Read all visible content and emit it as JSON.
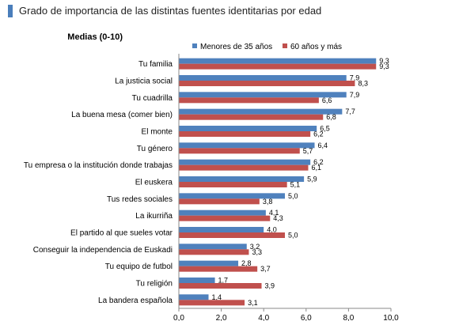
{
  "header": {
    "title": "Grado de importancia de las distintas fuentes identitarias por edad",
    "accent_color": "#4a7ebb"
  },
  "chart_data": {
    "type": "bar",
    "orientation": "horizontal",
    "subtitle": "Medias (0-10)",
    "categories": [
      "Tu familia",
      "La justicia social",
      "Tu cuadrilla",
      "La buena mesa (comer bien)",
      "El monte",
      "Tu género",
      "Tu empresa o la institución donde trabajas",
      "El euskera",
      "Tus redes sociales",
      "La ikurriña",
      "El partido al que sueles votar",
      "Conseguir la independencia de Euskadi",
      "Tu equipo de futbol",
      "Tu religión",
      "La bandera española"
    ],
    "series": [
      {
        "name": "Menores de 35 años",
        "color": "#4f81bd",
        "values": [
          9.3,
          7.9,
          7.9,
          7.7,
          6.5,
          6.4,
          6.2,
          5.9,
          5.0,
          4.1,
          4.0,
          3.2,
          2.8,
          1.7,
          1.4
        ],
        "labels": [
          "9,3",
          "7,9",
          "7,9",
          "7,7",
          "6,5",
          "6,4",
          "6,2",
          "5,9",
          "5,0",
          "4,1",
          "4,0",
          "3,2",
          "2,8",
          "1,7",
          "1,4"
        ]
      },
      {
        "name": "60 años y más",
        "color": "#c0504d",
        "values": [
          9.3,
          8.3,
          6.6,
          6.8,
          6.2,
          5.7,
          6.1,
          5.1,
          3.8,
          4.3,
          5.0,
          3.3,
          3.7,
          3.9,
          3.1
        ],
        "labels": [
          "9,3",
          "8,3",
          "6,6",
          "6,8",
          "6,2",
          "5,7",
          "6,1",
          "5,1",
          "3,8",
          "4,3",
          "5,0",
          "3,3",
          "3,7",
          "3,9",
          "3,1"
        ]
      }
    ],
    "xlim": [
      0,
      10
    ],
    "xticks": [
      0,
      2,
      4,
      6,
      8,
      10
    ],
    "xtick_labels": [
      "0,0",
      "2,0",
      "4,0",
      "6,0",
      "8,0",
      "10,0"
    ],
    "legend_position": "top-right",
    "grid": false
  }
}
